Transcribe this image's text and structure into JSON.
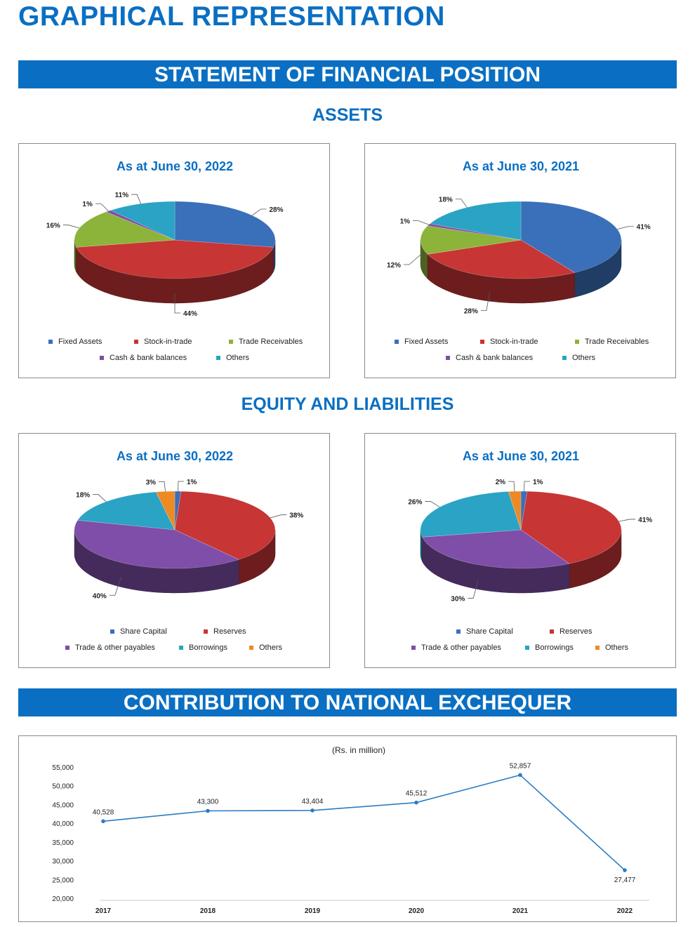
{
  "page": {
    "title": "GRAPHICAL REPRESENTATION",
    "banner_financial": "STATEMENT OF FINANCIAL POSITION",
    "assets_heading": "ASSETS",
    "equity_heading": "EQUITY AND LIABILITIES",
    "banner_exchequer": "CONTRIBUTION TO NATIONAL EXCHEQUER"
  },
  "colors": {
    "brand_blue": "#0a6fc2",
    "fixed_assets": "#3a6fba",
    "stock_in_trade": "#c73535",
    "trade_receivables": "#8cb33a",
    "cash_bank": "#7e4ea8",
    "others_teal": "#2aa3c4",
    "share_capital": "#3a6fba",
    "reserves": "#c73535",
    "trade_payables": "#7e4ea8",
    "borrowings": "#2aa3c4",
    "others_orange": "#ee8a23",
    "line": "#2a7cc4"
  },
  "chart_data": [
    {
      "type": "pie",
      "title": "As at June 30, 2022",
      "categories": [
        "Fixed Assets",
        "Stock-in-trade",
        "Trade Receivables",
        "Cash & bank balances",
        "Others"
      ],
      "values": [
        28,
        44,
        16,
        1,
        11
      ],
      "labels": [
        "28%",
        "44%",
        "16%",
        "1%",
        "11%"
      ],
      "legend": "bottom"
    },
    {
      "type": "pie",
      "title": "As at June 30, 2021",
      "categories": [
        "Fixed Assets",
        "Stock-in-trade",
        "Trade Receivables",
        "Cash & bank balances",
        "Others"
      ],
      "values": [
        41,
        28,
        12,
        1,
        18
      ],
      "labels": [
        "41%",
        "28%",
        "12%",
        "1%",
        "18%"
      ],
      "legend": "bottom"
    },
    {
      "type": "pie",
      "title": "As at June 30, 2022",
      "categories": [
        "Share Capital",
        "Reserves",
        "Trade & other payables",
        "Borrowings",
        "Others"
      ],
      "values": [
        1,
        38,
        40,
        18,
        3
      ],
      "labels": [
        "1%",
        "38%",
        "40%",
        "18%",
        "3%"
      ],
      "legend": "bottom"
    },
    {
      "type": "pie",
      "title": "As at June 30, 2021",
      "categories": [
        "Share Capital",
        "Reserves",
        "Trade & other payables",
        "Borrowings",
        "Others"
      ],
      "values": [
        1,
        41,
        30,
        26,
        2
      ],
      "labels": [
        "1%",
        "41%",
        "30%",
        "26%",
        "2%"
      ],
      "legend": "bottom"
    },
    {
      "type": "line",
      "title": "(Rs. in million)",
      "x": [
        "2017",
        "2018",
        "2019",
        "2020",
        "2021",
        "2022"
      ],
      "values": [
        40528,
        43300,
        43404,
        45512,
        52857,
        27477
      ],
      "labels": [
        "40,528",
        "43,300",
        "43,404",
        "45,512",
        "52,857",
        "27,477"
      ],
      "ylim": [
        20000,
        55000
      ],
      "yticks": [
        "20,000",
        "25,000",
        "30,000",
        "35,000",
        "40,000",
        "45,000",
        "50,000",
        "55,000"
      ],
      "grid": false
    }
  ]
}
